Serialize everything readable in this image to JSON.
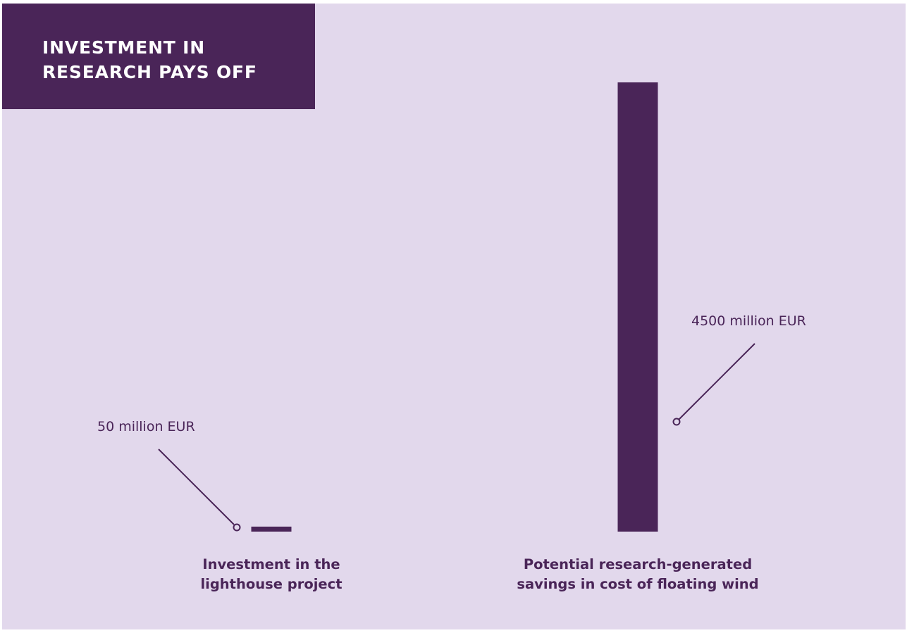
{
  "colors": {
    "background": "#e2d8ec",
    "accent": "#4a2558",
    "title_text": "#ffffff",
    "label_text": "#4a2558"
  },
  "title": "INVESTMENT IN RESEARCH PAYS OFF",
  "chart_data": {
    "type": "bar",
    "title": "INVESTMENT IN RESEARCH PAYS OFF",
    "unit": "million EUR",
    "categories": [
      [
        "Investment in the",
        "lighthouse project"
      ],
      [
        "Potential research-generated",
        "savings in cost of floating wind"
      ]
    ],
    "values": [
      50,
      4500
    ],
    "value_labels": [
      "50 million EUR",
      "4500 million EUR"
    ],
    "ylim": [
      0,
      4500
    ],
    "grid": false,
    "legend": "none",
    "axes_visible": false
  }
}
